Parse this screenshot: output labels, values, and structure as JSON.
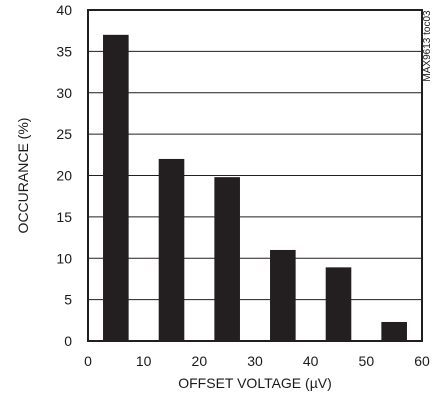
{
  "chart_data": {
    "type": "bar",
    "x": [
      5,
      15,
      25,
      35,
      45,
      55
    ],
    "values": [
      37,
      22,
      19.8,
      11,
      8.9,
      2.3
    ],
    "bar_width": 4.6,
    "xlim": [
      0,
      60
    ],
    "ylim": [
      0,
      40
    ],
    "xticks": [
      0,
      10,
      20,
      30,
      40,
      50,
      60
    ],
    "yticks": [
      0,
      5,
      10,
      15,
      20,
      25,
      30,
      35,
      40
    ],
    "xlabel": "OFFSET VOLTAGE (µV)",
    "ylabel": "OCCURANCE (%)",
    "annotation": "MAX9613 toc03",
    "grid": "horizontal",
    "colors": {
      "bar": "#231f20",
      "grid": "#231f20",
      "axis": "#231f20"
    }
  }
}
